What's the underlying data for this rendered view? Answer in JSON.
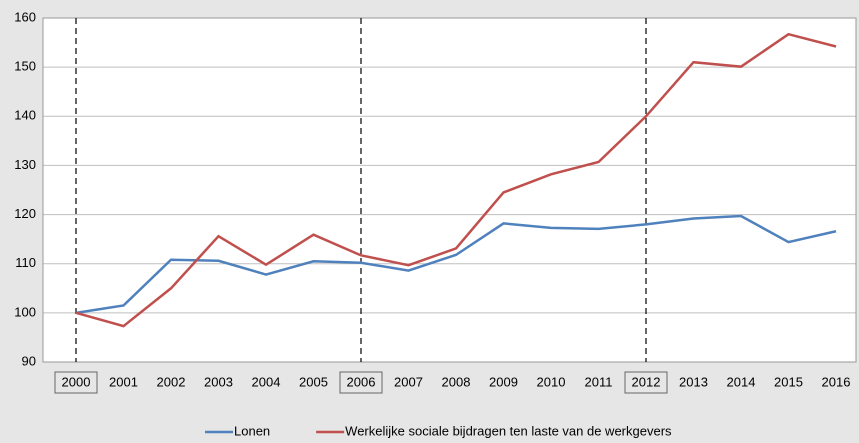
{
  "chart_data": {
    "type": "line",
    "categories": [
      "2000",
      "2001",
      "2002",
      "2003",
      "2004",
      "2005",
      "2006",
      "2007",
      "2008",
      "2009",
      "2010",
      "2011",
      "2012",
      "2013",
      "2014",
      "2015",
      "2016"
    ],
    "series": [
      {
        "name": "Lonen",
        "color": "#4f81bd",
        "values": [
          100,
          101.5,
          110.8,
          110.6,
          107.8,
          110.5,
          110.2,
          108.6,
          111.8,
          118.2,
          117.3,
          117.1,
          118,
          119.2,
          119.7,
          114.4,
          116.6
        ]
      },
      {
        "name": "Werkelijke sociale bijdragen ten laste van de werkgevers",
        "color": "#c0504d",
        "values": [
          100,
          97.3,
          105,
          115.6,
          109.8,
          115.9,
          111.7,
          109.7,
          113.1,
          124.5,
          128.2,
          130.7,
          140,
          151,
          150.1,
          156.7,
          154.2
        ]
      }
    ],
    "ylim": [
      90,
      160
    ],
    "yticks": [
      90,
      100,
      110,
      120,
      130,
      140,
      150,
      160
    ],
    "grid": true,
    "highlight_indices": [
      0,
      6,
      12
    ],
    "legend": "bottom"
  }
}
